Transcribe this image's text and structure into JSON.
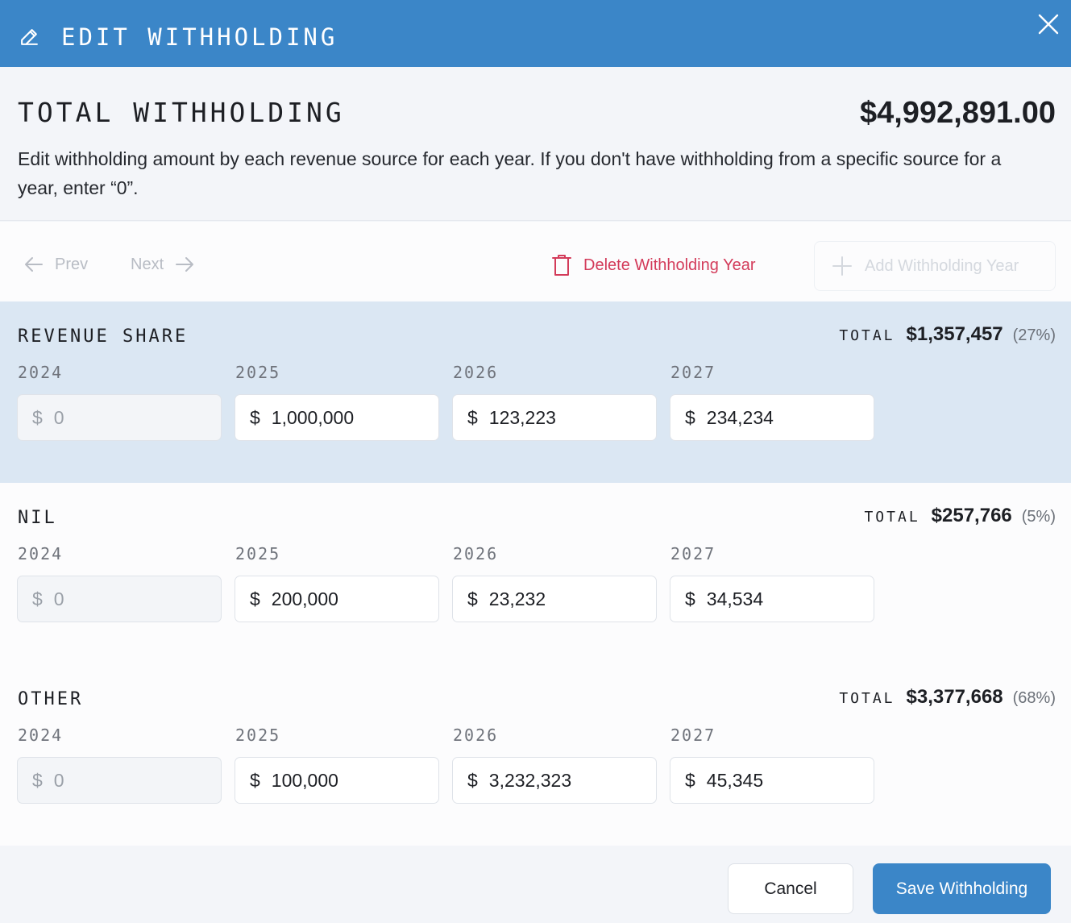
{
  "header": {
    "title": "EDIT WITHHOLDING",
    "icon": "pencil-icon",
    "close_icon": "close-icon",
    "color": "#3b86c8"
  },
  "summary": {
    "label": "TOTAL WITHHOLDING",
    "amount": "$4,992,891.00",
    "description": "Edit withholding amount by each revenue source for each year. If you don't have withholding from a specific source for a year, enter “0”."
  },
  "toolbar": {
    "prev_label": "Prev",
    "next_label": "Next",
    "delete_label": "Delete Withholding Year",
    "add_label": "Add Withholding Year"
  },
  "sections": [
    {
      "name": "REVENUE SHARE",
      "total_label": "TOTAL",
      "total_value": "$1,357,457",
      "total_pct": "(27%)",
      "active": true,
      "years": [
        {
          "year": "2024",
          "currency": "$",
          "value": "0",
          "disabled": true
        },
        {
          "year": "2025",
          "currency": "$",
          "value": "1,000,000",
          "disabled": false
        },
        {
          "year": "2026",
          "currency": "$",
          "value": "123,223",
          "disabled": false
        },
        {
          "year": "2027",
          "currency": "$",
          "value": "234,234",
          "disabled": false
        }
      ]
    },
    {
      "name": "NIL",
      "total_label": "TOTAL",
      "total_value": "$257,766",
      "total_pct": "(5%)",
      "active": false,
      "years": [
        {
          "year": "2024",
          "currency": "$",
          "value": "0",
          "disabled": true
        },
        {
          "year": "2025",
          "currency": "$",
          "value": "200,000",
          "disabled": false
        },
        {
          "year": "2026",
          "currency": "$",
          "value": "23,232",
          "disabled": false
        },
        {
          "year": "2027",
          "currency": "$",
          "value": "34,534",
          "disabled": false
        }
      ]
    },
    {
      "name": "OTHER",
      "total_label": "TOTAL",
      "total_value": "$3,377,668",
      "total_pct": "(68%)",
      "active": false,
      "years": [
        {
          "year": "2024",
          "currency": "$",
          "value": "0",
          "disabled": true
        },
        {
          "year": "2025",
          "currency": "$",
          "value": "100,000",
          "disabled": false
        },
        {
          "year": "2026",
          "currency": "$",
          "value": "3,232,323",
          "disabled": false
        },
        {
          "year": "2027",
          "currency": "$",
          "value": "45,345",
          "disabled": false
        }
      ]
    }
  ],
  "footer": {
    "cancel_label": "Cancel",
    "save_label": "Save Withholding"
  }
}
